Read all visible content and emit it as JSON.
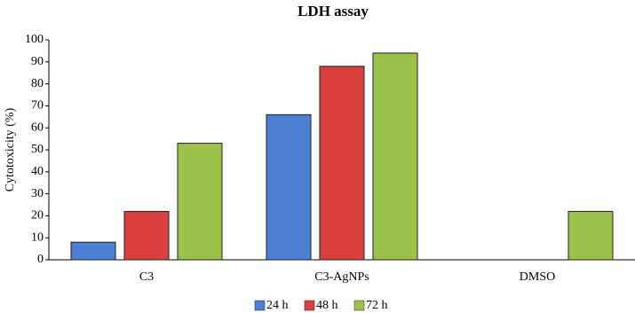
{
  "chart_data": {
    "type": "bar",
    "title": "LDH assay",
    "y_label": "Cytotoxicity (%)",
    "categories": [
      "C3",
      "C3-AgNPs",
      "DMSO"
    ],
    "series": [
      {
        "name": "24 h",
        "color": "#4a7fd4",
        "values": [
          8,
          66,
          0
        ]
      },
      {
        "name": "48 h",
        "color": "#d9403e",
        "values": [
          22,
          88,
          0
        ]
      },
      {
        "name": "72 h",
        "color": "#9bc24a",
        "values": [
          53,
          94,
          22
        ]
      }
    ],
    "ylim": [
      0,
      100
    ],
    "yticks": [
      0,
      10,
      20,
      30,
      40,
      50,
      60,
      70,
      80,
      90,
      100
    ],
    "grid": false,
    "legend": "bottom"
  }
}
